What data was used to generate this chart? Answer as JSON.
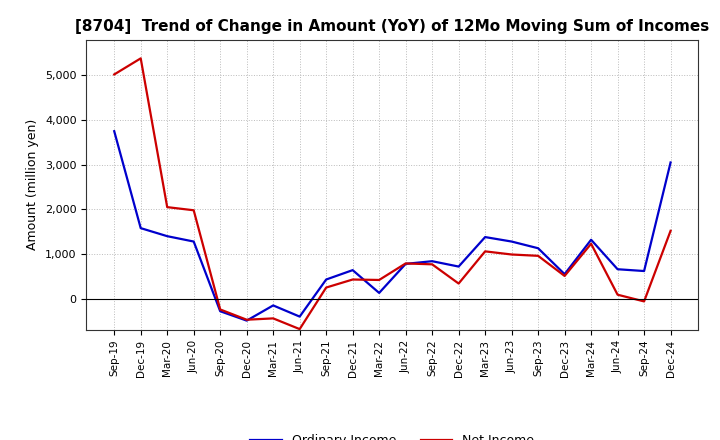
{
  "title": "[8704]  Trend of Change in Amount (YoY) of 12Mo Moving Sum of Incomes",
  "ylabel": "Amount (million yen)",
  "x_labels": [
    "Sep-19",
    "Dec-19",
    "Mar-20",
    "Jun-20",
    "Sep-20",
    "Dec-20",
    "Mar-21",
    "Jun-21",
    "Sep-21",
    "Dec-21",
    "Mar-22",
    "Jun-22",
    "Sep-22",
    "Dec-22",
    "Mar-23",
    "Jun-23",
    "Sep-23",
    "Dec-23",
    "Mar-24",
    "Jun-24",
    "Sep-24",
    "Dec-24"
  ],
  "ordinary_income": [
    3750,
    1580,
    1400,
    1280,
    -280,
    -490,
    -150,
    -400,
    430,
    640,
    130,
    780,
    840,
    720,
    1380,
    1280,
    1130,
    550,
    1320,
    660,
    620,
    3050
  ],
  "net_income": [
    5020,
    5380,
    2050,
    1980,
    -240,
    -470,
    -440,
    -680,
    250,
    430,
    420,
    790,
    770,
    340,
    1060,
    990,
    960,
    510,
    1230,
    90,
    -60,
    1520
  ],
  "ordinary_color": "#0000cc",
  "net_color": "#cc0000",
  "ylim_min": -700,
  "ylim_max": 5800,
  "yticks": [
    0,
    1000,
    2000,
    3000,
    4000,
    5000
  ],
  "background_color": "#ffffff",
  "grid_color": "#bbbbbb",
  "legend_ordinary": "Ordinary Income",
  "legend_net": "Net Income",
  "line_width": 1.6
}
